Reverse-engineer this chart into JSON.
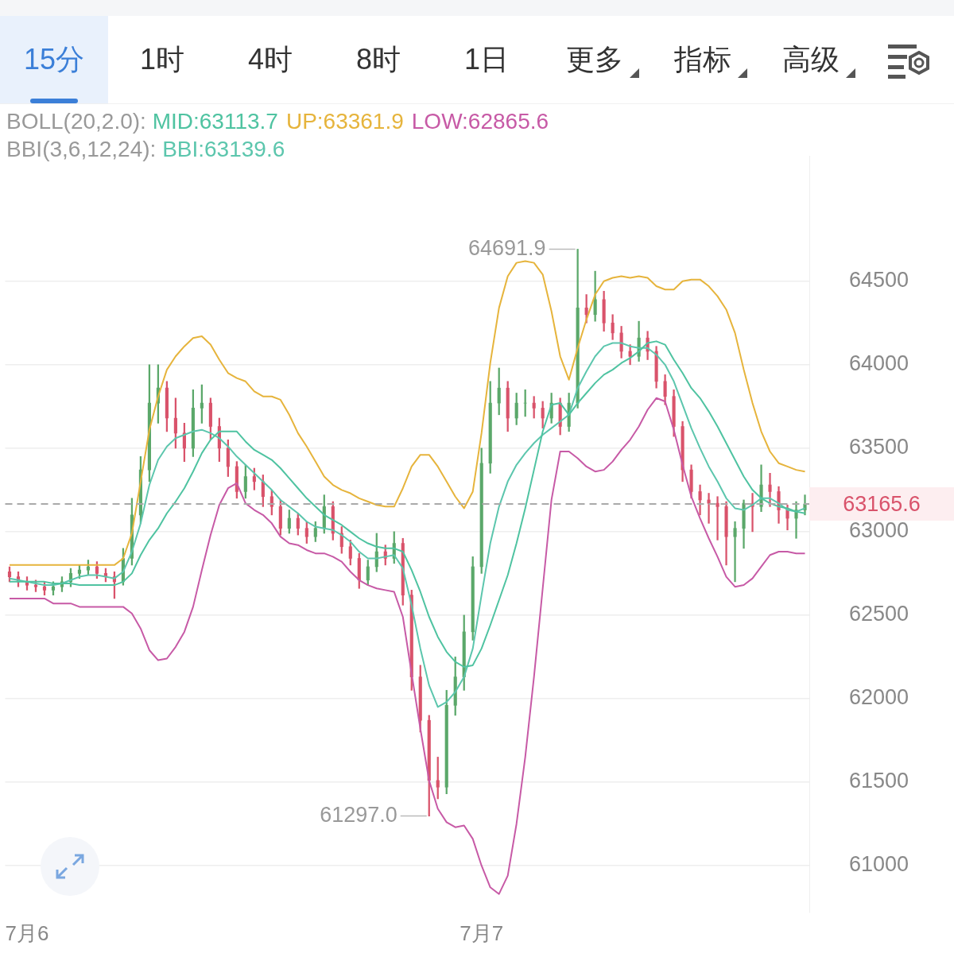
{
  "chart_data": {
    "type": "candlestick",
    "categories": [
      null,
      null,
      "7月6",
      null,
      null,
      null,
      null,
      null,
      null,
      null,
      null,
      null,
      null,
      null,
      null,
      null,
      null,
      null,
      null,
      null,
      null,
      null,
      null,
      null,
      null,
      null,
      null,
      null,
      null,
      null,
      null,
      null,
      null,
      null,
      null,
      null,
      null,
      null,
      null,
      null,
      null,
      null,
      null,
      null,
      null,
      null,
      null,
      null,
      null,
      null,
      null,
      null,
      null,
      null,
      "7月7",
      null,
      null,
      null,
      null,
      null,
      null,
      null,
      null,
      null,
      null,
      null,
      null,
      null,
      null,
      null,
      null,
      null,
      null,
      null,
      null,
      null,
      null,
      null,
      null,
      null,
      null,
      null,
      null,
      null,
      null,
      null,
      null,
      null,
      null,
      null,
      null,
      null
    ],
    "ohlc": [
      [
        62760,
        62790,
        62700,
        62730
      ],
      [
        62730,
        62760,
        62670,
        62700
      ],
      [
        62700,
        62730,
        62650,
        62680
      ],
      [
        62680,
        62710,
        62640,
        62670
      ],
      [
        62670,
        62700,
        62620,
        62650
      ],
      [
        62650,
        62700,
        62620,
        62670
      ],
      [
        62670,
        62730,
        62640,
        62700
      ],
      [
        62700,
        62780,
        62670,
        62750
      ],
      [
        62750,
        62800,
        62720,
        62770
      ],
      [
        62770,
        62830,
        62740,
        62790
      ],
      [
        62790,
        62820,
        62720,
        62750
      ],
      [
        62750,
        62780,
        62700,
        62730
      ],
      [
        62730,
        62760,
        62600,
        62700
      ],
      [
        62700,
        62900,
        62680,
        62840
      ],
      [
        62840,
        63200,
        62800,
        63100
      ],
      [
        63100,
        63450,
        63050,
        63370
      ],
      [
        63370,
        64000,
        63300,
        63770
      ],
      [
        63770,
        64000,
        63650,
        63860
      ],
      [
        63860,
        63900,
        63600,
        63680
      ],
      [
        63680,
        63800,
        63500,
        63590
      ],
      [
        63590,
        63650,
        63420,
        63500
      ],
      [
        63500,
        63850,
        63450,
        63740
      ],
      [
        63740,
        63880,
        63650,
        63770
      ],
      [
        63770,
        63800,
        63550,
        63630
      ],
      [
        63630,
        63680,
        63420,
        63500
      ],
      [
        63500,
        63550,
        63330,
        63390
      ],
      [
        63390,
        63420,
        63200,
        63240
      ],
      [
        63240,
        63400,
        63200,
        63330
      ],
      [
        63330,
        63380,
        63250,
        63300
      ],
      [
        63300,
        63340,
        63150,
        63210
      ],
      [
        63210,
        63250,
        63100,
        63150
      ],
      [
        63150,
        63190,
        62980,
        63020
      ],
      [
        63020,
        63130,
        62990,
        63080
      ],
      [
        63080,
        63110,
        62980,
        63020
      ],
      [
        63020,
        63060,
        62930,
        62970
      ],
      [
        62970,
        63060,
        62940,
        63020
      ],
      [
        63020,
        63220,
        62990,
        63150
      ],
      [
        63150,
        63180,
        62950,
        62990
      ],
      [
        62990,
        63030,
        62870,
        62910
      ],
      [
        62910,
        62950,
        62800,
        62840
      ],
      [
        62840,
        62870,
        62660,
        62710
      ],
      [
        62710,
        62830,
        62680,
        62790
      ],
      [
        62790,
        62990,
        62760,
        62880
      ],
      [
        62880,
        62920,
        62800,
        62840
      ],
      [
        62840,
        63000,
        62810,
        62930
      ],
      [
        62930,
        62960,
        62560,
        62620
      ],
      [
        62620,
        62650,
        62050,
        62130
      ],
      [
        62130,
        62200,
        61800,
        61870
      ],
      [
        61870,
        61900,
        61297.0,
        61510
      ],
      [
        61510,
        61650,
        61400,
        61470
      ],
      [
        61470,
        62050,
        61430,
        61960
      ],
      [
        61960,
        62250,
        61900,
        62130
      ],
      [
        62130,
        62500,
        62050,
        62400
      ],
      [
        62400,
        62850,
        62350,
        62790
      ],
      [
        62790,
        63500,
        62750,
        63410
      ],
      [
        63410,
        63900,
        63350,
        63770
      ],
      [
        63770,
        63980,
        63700,
        63860
      ],
      [
        63860,
        63900,
        63600,
        63680
      ],
      [
        63680,
        63830,
        63640,
        63770
      ],
      [
        63770,
        63850,
        63690,
        63770
      ],
      [
        63770,
        63810,
        63680,
        63740
      ],
      [
        63740,
        63780,
        63620,
        63680
      ],
      [
        63680,
        63830,
        63650,
        63770
      ],
      [
        63770,
        63800,
        63580,
        63630
      ],
      [
        63630,
        63830,
        63600,
        63770
      ],
      [
        63770,
        64691.9,
        63740,
        64340
      ],
      [
        64340,
        64420,
        64250,
        64300
      ],
      [
        64300,
        64560,
        64260,
        64390
      ],
      [
        64390,
        64440,
        64200,
        64250
      ],
      [
        64250,
        64300,
        64150,
        64190
      ],
      [
        64190,
        64230,
        64040,
        64080
      ],
      [
        64080,
        64120,
        64000,
        64050
      ],
      [
        64050,
        64260,
        64020,
        64160
      ],
      [
        64160,
        64200,
        64030,
        64080
      ],
      [
        64080,
        64110,
        63860,
        63900
      ],
      [
        63900,
        63940,
        63760,
        63810
      ],
      [
        63810,
        63850,
        63570,
        63630
      ],
      [
        63630,
        63660,
        63300,
        63370
      ],
      [
        63370,
        63400,
        63200,
        63240
      ],
      [
        63240,
        63280,
        63100,
        63190
      ],
      [
        63190,
        63230,
        63050,
        63170
      ],
      [
        63170,
        63210,
        62950,
        63150
      ],
      [
        63150,
        63180,
        62800,
        62970
      ],
      [
        62970,
        63060,
        62700,
        63020
      ],
      [
        63020,
        63190,
        62900,
        63170
      ],
      [
        63170,
        63230,
        63000,
        63150
      ],
      [
        63150,
        63400,
        63120,
        63280
      ],
      [
        63280,
        63350,
        63150,
        63240
      ],
      [
        63240,
        63270,
        63050,
        63130
      ],
      [
        63130,
        63160,
        63010,
        63080
      ],
      [
        63080,
        63180,
        62960,
        63130
      ],
      [
        63130,
        63220,
        63100,
        63165.6
      ]
    ],
    "series": [
      {
        "type": "line",
        "name": "MID:63113.7",
        "color": "#4fc3a1",
        "values": [
          62700,
          62700,
          62700,
          62700,
          62700,
          62690,
          62690,
          62690,
          62680,
          62680,
          62680,
          62680,
          62680,
          62700,
          62750,
          62860,
          62950,
          63020,
          63110,
          63180,
          63260,
          63360,
          63470,
          63550,
          63600,
          63600,
          63600,
          63540,
          63490,
          63460,
          63430,
          63380,
          63320,
          63260,
          63200,
          63150,
          63100,
          63070,
          63040,
          63000,
          62960,
          62930,
          62910,
          62900,
          62900,
          62880,
          62770,
          62640,
          62490,
          62370,
          62280,
          62220,
          62190,
          62200,
          62300,
          62440,
          62590,
          62740,
          62930,
          63140,
          63370,
          63600,
          63760,
          63770,
          63700,
          63770,
          63830,
          63890,
          63940,
          63970,
          64010,
          64040,
          64080,
          64130,
          64140,
          64120,
          64030,
          63950,
          63860,
          63800,
          63720,
          63630,
          63530,
          63430,
          63330,
          63250,
          63200,
          63170,
          63150,
          63140,
          63120,
          63110
        ]
      },
      {
        "type": "line",
        "name": "UP:63361.9",
        "color": "#e6b43c",
        "values": [
          62800,
          62800,
          62800,
          62800,
          62800,
          62800,
          62800,
          62800,
          62800,
          62800,
          62800,
          62800,
          62800,
          62840,
          62990,
          63300,
          63610,
          63810,
          63970,
          64050,
          64110,
          64160,
          64170,
          64120,
          64030,
          63950,
          63920,
          63900,
          63840,
          63810,
          63810,
          63790,
          63700,
          63590,
          63510,
          63420,
          63330,
          63280,
          63250,
          63230,
          63200,
          63180,
          63160,
          63150,
          63150,
          63260,
          63390,
          63460,
          63460,
          63390,
          63300,
          63210,
          63140,
          63240,
          63590,
          64010,
          64340,
          64530,
          64610,
          64620,
          64610,
          64540,
          64320,
          64050,
          63910,
          64100,
          64270,
          64420,
          64500,
          64520,
          64530,
          64520,
          64530,
          64520,
          64470,
          64450,
          64450,
          64500,
          64510,
          64510,
          64470,
          64410,
          64330,
          64190,
          63970,
          63770,
          63600,
          63480,
          63410,
          63390,
          63370,
          63360
        ]
      },
      {
        "type": "line",
        "name": "LOW:62865.6",
        "color": "#c75aa6",
        "values": [
          62600,
          62600,
          62600,
          62600,
          62600,
          62570,
          62570,
          62570,
          62550,
          62550,
          62550,
          62550,
          62550,
          62550,
          62510,
          62420,
          62290,
          62230,
          62240,
          62310,
          62400,
          62550,
          62770,
          62980,
          63160,
          63260,
          63290,
          63170,
          63130,
          63100,
          63050,
          62970,
          62930,
          62920,
          62890,
          62870,
          62870,
          62850,
          62820,
          62760,
          62710,
          62680,
          62660,
          62650,
          62640,
          62490,
          62150,
          61820,
          61510,
          61340,
          61260,
          61230,
          61240,
          61160,
          61000,
          60870,
          60830,
          60940,
          61250,
          61650,
          62130,
          62660,
          63190,
          63480,
          63480,
          63440,
          63390,
          63360,
          63370,
          63420,
          63490,
          63550,
          63630,
          63730,
          63800,
          63780,
          63610,
          63400,
          63210,
          63080,
          62960,
          62850,
          62730,
          62670,
          62680,
          62720,
          62790,
          62860,
          62880,
          62880,
          62870,
          62870
        ]
      },
      {
        "type": "line",
        "name": "BBI:63139.6",
        "color": "#5cc6ad",
        "values": [
          62720,
          62710,
          62700,
          62690,
          62680,
          62680,
          62690,
          62710,
          62730,
          62740,
          62740,
          62730,
          62720,
          62760,
          62880,
          63050,
          63280,
          63430,
          63510,
          63560,
          63580,
          63600,
          63610,
          63590,
          63560,
          63510,
          63450,
          63400,
          63350,
          63300,
          63250,
          63190,
          63150,
          63110,
          63060,
          63030,
          63020,
          63010,
          62980,
          62940,
          62880,
          62840,
          62840,
          62850,
          62860,
          62780,
          62560,
          62300,
          62080,
          61950,
          61980,
          62040,
          62130,
          62300,
          62620,
          62930,
          63150,
          63300,
          63400,
          63470,
          63530,
          63580,
          63620,
          63660,
          63700,
          63860,
          63960,
          64050,
          64110,
          64130,
          64130,
          64110,
          64100,
          64100,
          64060,
          64000,
          63900,
          63760,
          63620,
          63500,
          63390,
          63300,
          63200,
          63140,
          63130,
          63160,
          63200,
          63200,
          63170,
          63130,
          63120,
          63140
        ]
      }
    ],
    "ylim": [
      60720,
      65250
    ],
    "yticks": [
      61000,
      61500,
      62000,
      62500,
      63000,
      63500,
      64000,
      64500
    ],
    "grid": "y",
    "marker": "none",
    "legend": "top",
    "legend_title": "BOLL(20,2.0):",
    "ref_lines": [
      {
        "axis": "y",
        "value": 63165.6,
        "label": "63165.6",
        "color": "#aaaaaa",
        "line_style": "dashed"
      }
    ],
    "annotations": [
      "15分",
      "1时",
      "4时",
      "8时",
      "1日",
      "更多",
      "指标",
      "高级",
      "BBI(3,6,12,24):",
      "64691.9",
      "61297.0"
    ]
  }
}
